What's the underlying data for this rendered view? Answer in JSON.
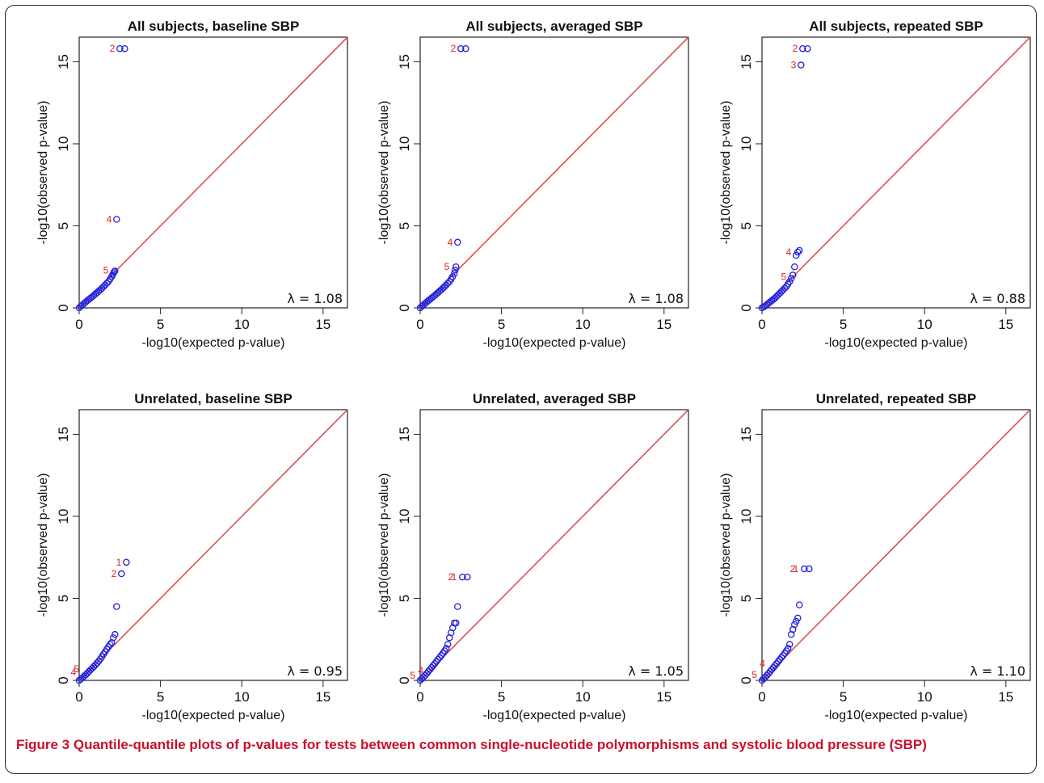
{
  "caption": {
    "label": "Figure 3",
    "text": "Quantile-quantile plots of p-values for tests between common single-nucleotide polymorphisms and systolic blood pressure (SBP)"
  },
  "colors": {
    "points": "#2222dd",
    "reference_line": "#e05050",
    "point_labels": "#e02020",
    "axes": "#222222"
  },
  "chart_data": [
    {
      "type": "scatter",
      "title": "All subjects, baseline SBP",
      "xlabel": "-log10(expected p-value)",
      "ylabel": "-log10(observed p-value)",
      "xlim": [
        0,
        16.5
      ],
      "ylim": [
        0,
        16.5
      ],
      "xticks": [
        0,
        5,
        10,
        15
      ],
      "yticks": [
        0,
        5,
        10,
        15
      ],
      "reference_line": "y = x",
      "lambda": "λ = 1.08",
      "points": [
        [
          0.0,
          0.0
        ],
        [
          0.1,
          0.1
        ],
        [
          0.2,
          0.18
        ],
        [
          0.3,
          0.27
        ],
        [
          0.4,
          0.35
        ],
        [
          0.5,
          0.44
        ],
        [
          0.6,
          0.52
        ],
        [
          0.7,
          0.6
        ],
        [
          0.8,
          0.68
        ],
        [
          0.9,
          0.76
        ],
        [
          1.0,
          0.85
        ],
        [
          1.1,
          0.93
        ],
        [
          1.2,
          1.02
        ],
        [
          1.3,
          1.1
        ],
        [
          1.4,
          1.2
        ],
        [
          1.5,
          1.3
        ],
        [
          1.6,
          1.4
        ],
        [
          1.7,
          1.5
        ],
        [
          1.8,
          1.6
        ],
        [
          1.9,
          1.75
        ],
        [
          2.0,
          1.9
        ],
        [
          2.05,
          2.0
        ],
        [
          2.1,
          2.1
        ],
        [
          2.15,
          2.2
        ],
        [
          2.2,
          2.25
        ],
        [
          2.3,
          5.4
        ],
        [
          2.5,
          15.8
        ],
        [
          2.8,
          15.8
        ]
      ],
      "labels": [
        {
          "text": "2",
          "x": 2.5,
          "y": 15.8
        },
        {
          "text": "4",
          "x": 2.3,
          "y": 5.4
        },
        {
          "text": "5",
          "x": 2.1,
          "y": 2.3
        }
      ]
    },
    {
      "type": "scatter",
      "title": "All subjects, averaged SBP",
      "xlabel": "-log10(expected p-value)",
      "ylabel": "-log10(observed p-value)",
      "xlim": [
        0,
        16.5
      ],
      "ylim": [
        0,
        16.5
      ],
      "xticks": [
        0,
        5,
        10,
        15
      ],
      "yticks": [
        0,
        5,
        10,
        15
      ],
      "reference_line": "y = x",
      "lambda": "λ = 1.08",
      "points": [
        [
          0.0,
          0.0
        ],
        [
          0.1,
          0.1
        ],
        [
          0.2,
          0.18
        ],
        [
          0.3,
          0.27
        ],
        [
          0.4,
          0.35
        ],
        [
          0.5,
          0.44
        ],
        [
          0.6,
          0.52
        ],
        [
          0.7,
          0.6
        ],
        [
          0.8,
          0.68
        ],
        [
          0.9,
          0.76
        ],
        [
          1.0,
          0.85
        ],
        [
          1.1,
          0.93
        ],
        [
          1.2,
          1.02
        ],
        [
          1.3,
          1.1
        ],
        [
          1.4,
          1.2
        ],
        [
          1.5,
          1.3
        ],
        [
          1.6,
          1.4
        ],
        [
          1.7,
          1.5
        ],
        [
          1.8,
          1.6
        ],
        [
          1.9,
          1.75
        ],
        [
          2.0,
          1.9
        ],
        [
          2.1,
          2.1
        ],
        [
          2.15,
          2.3
        ],
        [
          2.2,
          2.5
        ],
        [
          2.3,
          4.0
        ],
        [
          2.5,
          15.8
        ],
        [
          2.8,
          15.8
        ]
      ],
      "labels": [
        {
          "text": "2",
          "x": 2.5,
          "y": 15.8
        },
        {
          "text": "4",
          "x": 2.3,
          "y": 4.0
        },
        {
          "text": "5",
          "x": 2.1,
          "y": 2.5
        }
      ]
    },
    {
      "type": "scatter",
      "title": "All subjects, repeated SBP",
      "xlabel": "-log10(expected p-value)",
      "ylabel": "-log10(observed p-value)",
      "xlim": [
        0,
        16.5
      ],
      "ylim": [
        0,
        16.5
      ],
      "xticks": [
        0,
        5,
        10,
        15
      ],
      "yticks": [
        0,
        5,
        10,
        15
      ],
      "reference_line": "y = x",
      "lambda": "λ = 0.88",
      "points": [
        [
          0.0,
          0.0
        ],
        [
          0.1,
          0.05
        ],
        [
          0.2,
          0.12
        ],
        [
          0.3,
          0.2
        ],
        [
          0.4,
          0.28
        ],
        [
          0.5,
          0.36
        ],
        [
          0.6,
          0.44
        ],
        [
          0.7,
          0.52
        ],
        [
          0.8,
          0.6
        ],
        [
          0.9,
          0.7
        ],
        [
          1.0,
          0.8
        ],
        [
          1.1,
          0.9
        ],
        [
          1.2,
          1.0
        ],
        [
          1.3,
          1.1
        ],
        [
          1.4,
          1.2
        ],
        [
          1.5,
          1.3
        ],
        [
          1.6,
          1.45
        ],
        [
          1.7,
          1.6
        ],
        [
          1.8,
          1.8
        ],
        [
          1.9,
          2.0
        ],
        [
          2.0,
          2.5
        ],
        [
          2.1,
          3.2
        ],
        [
          2.2,
          3.4
        ],
        [
          2.3,
          3.5
        ],
        [
          2.4,
          14.8
        ],
        [
          2.5,
          15.8
        ],
        [
          2.8,
          15.8
        ]
      ],
      "labels": [
        {
          "text": "2",
          "x": 2.5,
          "y": 15.8
        },
        {
          "text": "3",
          "x": 2.4,
          "y": 14.8
        },
        {
          "text": "4",
          "x": 2.1,
          "y": 3.4
        },
        {
          "text": "5",
          "x": 1.8,
          "y": 1.9
        }
      ]
    },
    {
      "type": "scatter",
      "title": "Unrelated, baseline SBP",
      "xlabel": "-log10(expected p-value)",
      "ylabel": "-log10(observed p-value)",
      "xlim": [
        0,
        16.5
      ],
      "ylim": [
        0,
        16.5
      ],
      "xticks": [
        0,
        5,
        10,
        15
      ],
      "yticks": [
        0,
        5,
        10,
        15
      ],
      "reference_line": "y = x",
      "lambda": "λ = 0.95",
      "points": [
        [
          0.0,
          0.0
        ],
        [
          0.1,
          0.08
        ],
        [
          0.2,
          0.16
        ],
        [
          0.3,
          0.25
        ],
        [
          0.4,
          0.34
        ],
        [
          0.5,
          0.44
        ],
        [
          0.6,
          0.54
        ],
        [
          0.7,
          0.64
        ],
        [
          0.8,
          0.74
        ],
        [
          0.9,
          0.84
        ],
        [
          1.0,
          0.95
        ],
        [
          1.1,
          1.06
        ],
        [
          1.2,
          1.17
        ],
        [
          1.3,
          1.3
        ],
        [
          1.4,
          1.45
        ],
        [
          1.5,
          1.6
        ],
        [
          1.6,
          1.75
        ],
        [
          1.7,
          1.9
        ],
        [
          1.8,
          2.05
        ],
        [
          1.9,
          2.2
        ],
        [
          2.0,
          2.3
        ],
        [
          2.1,
          2.6
        ],
        [
          2.2,
          2.8
        ],
        [
          2.3,
          4.5
        ],
        [
          2.6,
          6.5
        ],
        [
          2.9,
          7.2
        ]
      ],
      "labels": [
        {
          "text": "1",
          "x": 2.9,
          "y": 7.2
        },
        {
          "text": "2",
          "x": 2.6,
          "y": 6.5
        },
        {
          "text": "4",
          "x": 0.1,
          "y": 0.5
        },
        {
          "text": "5",
          "x": 0.3,
          "y": 0.7
        }
      ]
    },
    {
      "type": "scatter",
      "title": "Unrelated, averaged SBP",
      "xlabel": "-log10(expected p-value)",
      "ylabel": "-log10(observed p-value)",
      "xlim": [
        0,
        16.5
      ],
      "ylim": [
        0,
        16.5
      ],
      "xticks": [
        0,
        5,
        10,
        15
      ],
      "yticks": [
        0,
        5,
        10,
        15
      ],
      "reference_line": "y = x",
      "lambda": "λ = 1.05",
      "points": [
        [
          0.0,
          0.0
        ],
        [
          0.1,
          0.1
        ],
        [
          0.2,
          0.2
        ],
        [
          0.3,
          0.3
        ],
        [
          0.4,
          0.42
        ],
        [
          0.5,
          0.54
        ],
        [
          0.6,
          0.66
        ],
        [
          0.7,
          0.78
        ],
        [
          0.8,
          0.9
        ],
        [
          0.9,
          1.02
        ],
        [
          1.0,
          1.15
        ],
        [
          1.1,
          1.28
        ],
        [
          1.2,
          1.4
        ],
        [
          1.3,
          1.52
        ],
        [
          1.4,
          1.65
        ],
        [
          1.5,
          1.8
        ],
        [
          1.6,
          1.95
        ],
        [
          1.7,
          2.2
        ],
        [
          1.8,
          2.6
        ],
        [
          1.9,
          2.9
        ],
        [
          2.0,
          3.2
        ],
        [
          2.1,
          3.5
        ],
        [
          2.2,
          3.5
        ],
        [
          2.3,
          4.5
        ],
        [
          2.6,
          6.3
        ],
        [
          2.9,
          6.3
        ]
      ],
      "labels": [
        {
          "text": "2",
          "x": 2.35,
          "y": 6.3
        },
        {
          "text": "1",
          "x": 2.55,
          "y": 6.3
        },
        {
          "text": "4",
          "x": 0.5,
          "y": 0.6
        },
        {
          "text": "5",
          "x": 0.0,
          "y": 0.3
        }
      ]
    },
    {
      "type": "scatter",
      "title": "Unrelated, repeated SBP",
      "xlabel": "-log10(expected p-value)",
      "ylabel": "-log10(observed p-value)",
      "xlim": [
        0,
        16.5
      ],
      "ylim": [
        0,
        16.5
      ],
      "xticks": [
        0,
        5,
        10,
        15
      ],
      "yticks": [
        0,
        5,
        10,
        15
      ],
      "reference_line": "y = x",
      "lambda": "λ = 1.10",
      "points": [
        [
          0.0,
          0.0
        ],
        [
          0.1,
          0.1
        ],
        [
          0.2,
          0.2
        ],
        [
          0.3,
          0.3
        ],
        [
          0.4,
          0.42
        ],
        [
          0.5,
          0.54
        ],
        [
          0.6,
          0.66
        ],
        [
          0.7,
          0.78
        ],
        [
          0.8,
          0.9
        ],
        [
          0.9,
          1.02
        ],
        [
          1.0,
          1.15
        ],
        [
          1.1,
          1.28
        ],
        [
          1.2,
          1.4
        ],
        [
          1.3,
          1.52
        ],
        [
          1.4,
          1.65
        ],
        [
          1.5,
          1.8
        ],
        [
          1.6,
          1.95
        ],
        [
          1.7,
          2.2
        ],
        [
          1.8,
          2.8
        ],
        [
          1.9,
          3.1
        ],
        [
          2.0,
          3.4
        ],
        [
          2.1,
          3.6
        ],
        [
          2.2,
          3.8
        ],
        [
          2.3,
          4.6
        ],
        [
          2.6,
          6.8
        ],
        [
          2.9,
          6.8
        ]
      ],
      "labels": [
        {
          "text": "2",
          "x": 2.35,
          "y": 6.8
        },
        {
          "text": "1",
          "x": 2.55,
          "y": 6.8
        },
        {
          "text": "4",
          "x": 0.5,
          "y": 1.0
        },
        {
          "text": "5",
          "x": 0.0,
          "y": 0.35
        }
      ]
    }
  ]
}
